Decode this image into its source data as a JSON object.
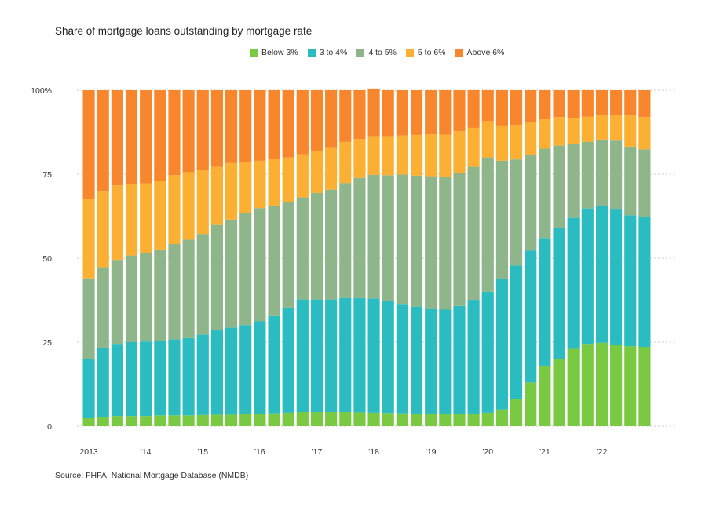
{
  "title": "Share of mortgage loans outstanding by mortgage rate",
  "source": "Source: FHFA, National Mortgage Database (NMDB)",
  "colors": {
    "below3": "#7ac943",
    "3to4": "#2bbcc2",
    "4to5": "#8fb58a",
    "5to6": "#fbb033",
    "above6": "#f7862c"
  },
  "legend": [
    {
      "label": "Below 3%",
      "color": "#7ac943"
    },
    {
      "label": "3 to 4%",
      "color": "#2bbcc2"
    },
    {
      "label": "4 to 5%",
      "color": "#8fb58a"
    },
    {
      "label": "5 to 6%",
      "color": "#fbb033"
    },
    {
      "label": "Above 6%",
      "color": "#f7862c"
    }
  ],
  "chart_data": {
    "type": "bar",
    "stacked": true,
    "ylim": [
      0,
      100
    ],
    "yticks": [
      "0",
      "25",
      "50",
      "75",
      "100%"
    ],
    "ytick_values": [
      0,
      25,
      50,
      75,
      100
    ],
    "grid": "horizontal dotted",
    "legend_position": "top",
    "xticks": [
      "2013",
      "'14",
      "'15",
      "'16",
      "'17",
      "'18",
      "'19",
      "'20",
      "'21",
      "'22"
    ],
    "xtick_index": [
      0,
      4,
      8,
      12,
      16,
      20,
      24,
      28,
      32,
      36
    ],
    "series": [
      {
        "name": "Below 3%",
        "values": [
          2.5,
          2.8,
          3,
          3,
          3,
          3.2,
          3.2,
          3.2,
          3.3,
          3.4,
          3.4,
          3.5,
          3.6,
          3.8,
          4,
          4.2,
          4.2,
          4.2,
          4.2,
          4.1,
          4,
          3.9,
          3.8,
          3.7,
          3.6,
          3.6,
          3.6,
          3.7,
          4,
          5,
          8,
          13,
          18,
          20,
          23,
          24.5,
          24.8,
          24.2,
          23.8,
          23.6
        ]
      },
      {
        "name": "3 to 4%",
        "values": [
          17.5,
          20.5,
          21.5,
          22,
          22.2,
          22.2,
          22.6,
          23,
          23.9,
          25.1,
          25.9,
          26.6,
          27.6,
          29.2,
          31.3,
          33.5,
          33.5,
          33.5,
          33.9,
          34,
          34,
          33.3,
          32.6,
          31.9,
          31.3,
          31.1,
          32.2,
          33.9,
          36,
          38.8,
          39.8,
          39.3,
          38,
          39,
          39,
          40.3,
          40.7,
          40.5,
          39,
          38.7
        ]
      },
      {
        "name": "4 to 5%",
        "values": [
          24,
          24,
          25,
          25.8,
          26.4,
          27.2,
          28.4,
          29.3,
          30,
          31.4,
          32.2,
          33.3,
          33.7,
          32.6,
          31.4,
          30.4,
          31.7,
          32.7,
          34.3,
          35.8,
          36.8,
          37.5,
          38.5,
          39,
          39.5,
          39.5,
          39.5,
          39.6,
          40,
          35.2,
          31.6,
          28.4,
          26.6,
          24.5,
          22,
          19.8,
          19.8,
          20.3,
          20.4,
          20.1
        ]
      },
      {
        "name": "5 to 6%",
        "values": [
          23.7,
          22.5,
          22.2,
          21.2,
          20.7,
          20.3,
          20.5,
          20.1,
          19,
          17.3,
          16.8,
          15.3,
          14.1,
          14,
          13.3,
          12.8,
          12.6,
          12.6,
          12.2,
          11.6,
          11.5,
          11.6,
          11.6,
          12.1,
          12.5,
          12.6,
          12.5,
          11.6,
          10.8,
          10.5,
          10.3,
          9.8,
          8.9,
          8.5,
          7.8,
          7.5,
          7.2,
          7.7,
          9.3,
          9.6
        ]
      },
      {
        "name": "Above 6%",
        "values": [
          32.3,
          30.2,
          28.3,
          28,
          27.7,
          27.1,
          25.3,
          24.4,
          23.8,
          22.8,
          21.7,
          21.3,
          21,
          20.4,
          20,
          19.1,
          18,
          17,
          15.4,
          14.5,
          14.2,
          13.7,
          13.5,
          13.3,
          13.1,
          13.2,
          12.2,
          11.2,
          9.2,
          10.5,
          10.3,
          9.5,
          8.5,
          8,
          8.2,
          7.9,
          7.5,
          7.3,
          7.5,
          8
        ]
      }
    ]
  }
}
